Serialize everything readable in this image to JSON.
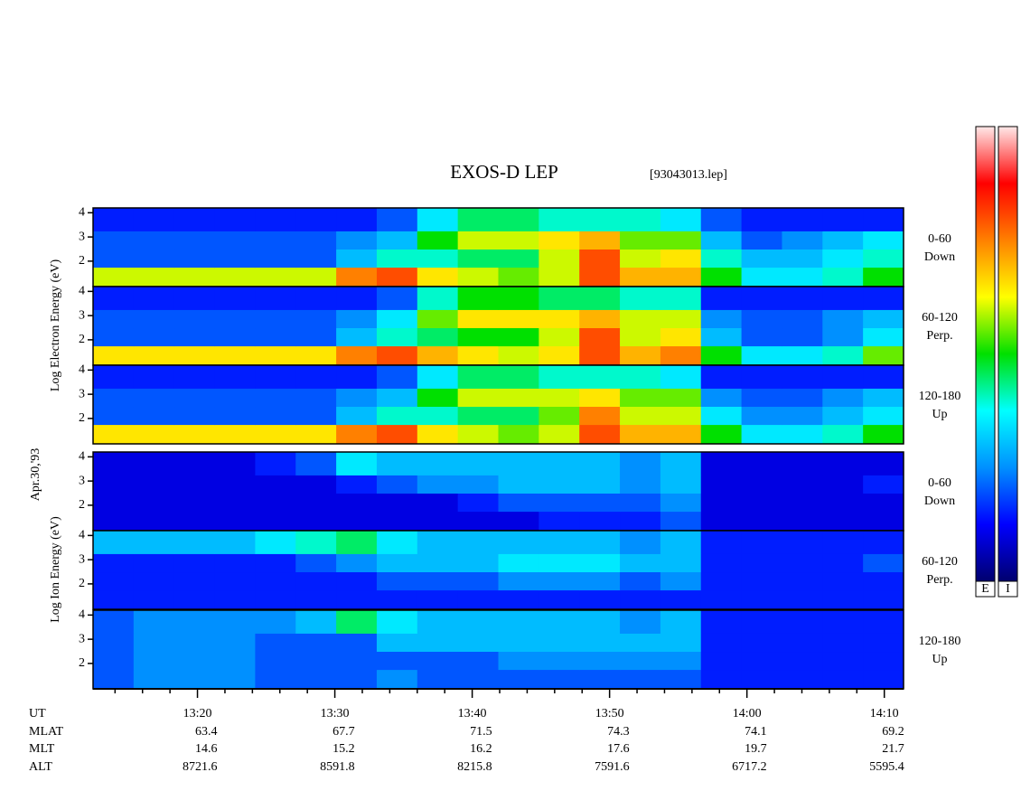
{
  "title": "EXOS-D LEP",
  "file": "[93043013.lep]",
  "date": "Apr.30,'93",
  "electron_label": "Log Electron Energy (eV)",
  "ion_label": "Log Ion Energy (eV)",
  "colorbar_labels": [
    "E",
    "I"
  ],
  "colormap": [
    "#00006e",
    "#0000ff",
    "#0090ff",
    "#00ffff",
    "#00e000",
    "#ffff00",
    "#ff8000",
    "#ff0000",
    "#ffe8e8"
  ],
  "zlim": [
    0,
    10
  ],
  "x_axis": {
    "xlim": [
      792.4,
      851.4
    ],
    "xbins": [
      792.4,
      795.35,
      798.3,
      801.25,
      804.2,
      807.15,
      810.1,
      813.05,
      816,
      818.95,
      821.9,
      824.85,
      827.8,
      830.75,
      833.7,
      836.65,
      839.6,
      842.55,
      845.5,
      848.45,
      851.4
    ],
    "xticks": [
      {
        "value": 800,
        "label": "13:20"
      },
      {
        "value": 810,
        "label": "13:30"
      },
      {
        "value": 820,
        "label": "13:40"
      },
      {
        "value": 830,
        "label": "13:50"
      },
      {
        "value": 840,
        "label": "14:00"
      },
      {
        "value": 850,
        "label": "14:10"
      }
    ],
    "xminorticks": [
      794,
      796,
      798,
      802,
      804,
      806,
      808,
      812,
      814,
      816,
      818,
      822,
      824,
      826,
      828,
      832,
      834,
      836,
      838,
      842,
      844,
      846,
      848
    ]
  },
  "orbit": {
    "labels": [
      "UT",
      "MLAT",
      "MLT",
      "ALT"
    ],
    "rows": [
      [
        63.4,
        67.7,
        71.5,
        74.3,
        74.1,
        69.2
      ],
      [
        14.6,
        15.2,
        16.2,
        17.6,
        19.7,
        21.7
      ],
      [
        8721.6,
        8591.8,
        8215.8,
        7591.6,
        6717.2,
        5595.4
      ]
    ]
  },
  "chart_data": [
    {
      "type": "heatmap",
      "angle": "0-60",
      "direction": "Down",
      "ylim": [
        0.95,
        4.2
      ],
      "yticks": [
        2,
        3,
        4
      ],
      "ybins": [
        0.95,
        1.75,
        2.5,
        3.25,
        4.2
      ],
      "values": [
        [
          6,
          6,
          6,
          6,
          6,
          6,
          7.5,
          8,
          6.5,
          6,
          5.5,
          6,
          8,
          7,
          7,
          5,
          3.5,
          3.5,
          4,
          5
        ],
        [
          2,
          2,
          2,
          2,
          2,
          2,
          3,
          4,
          4,
          4.5,
          4.5,
          6,
          8,
          6,
          6.5,
          4,
          3,
          3,
          3.5,
          4
        ],
        [
          2,
          2,
          2,
          2,
          2,
          2,
          2.5,
          3,
          5,
          6,
          6,
          6.5,
          7,
          5.5,
          5.5,
          3,
          2,
          2.5,
          3,
          3.5
        ],
        [
          1.5,
          1.5,
          1.5,
          1.5,
          1.5,
          1.5,
          1.5,
          2,
          3.5,
          4.5,
          4.5,
          4,
          4,
          4,
          3.5,
          2,
          1.5,
          1.5,
          1.5,
          1.5
        ]
      ]
    },
    {
      "type": "heatmap",
      "angle": "60-120",
      "direction": "Perp.",
      "ylim": [
        0.95,
        4.2
      ],
      "yticks": [
        2,
        3,
        4
      ],
      "ybins": [
        0.95,
        1.75,
        2.5,
        3.25,
        4.2
      ],
      "values": [
        [
          6.5,
          6.5,
          6.5,
          6.5,
          6.5,
          6.5,
          7.5,
          8,
          7,
          6.5,
          6,
          6.5,
          8,
          7,
          7.5,
          5,
          3.5,
          3.5,
          4,
          5.5
        ],
        [
          2,
          2,
          2,
          2,
          2,
          2,
          3,
          4,
          4.5,
          5,
          5,
          6,
          8,
          6,
          6.5,
          3,
          2,
          2,
          2.5,
          3.5
        ],
        [
          2,
          2,
          2,
          2,
          2,
          2,
          2.5,
          3.5,
          5.5,
          6.5,
          6.5,
          6.5,
          7,
          6,
          6,
          2.5,
          2,
          2,
          2.5,
          3
        ],
        [
          1.5,
          1.5,
          1.5,
          1.5,
          1.5,
          1.5,
          1.5,
          2,
          4,
          5,
          5,
          4.5,
          4.5,
          4,
          4,
          1.5,
          1.5,
          1.5,
          1.5,
          1.5
        ]
      ]
    },
    {
      "type": "heatmap",
      "angle": "120-180",
      "direction": "Up",
      "ylim": [
        0.95,
        4.2
      ],
      "yticks": [
        2,
        3,
        4
      ],
      "ybins": [
        0.95,
        1.75,
        2.5,
        3.25,
        4.2
      ],
      "values": [
        [
          6.5,
          6.5,
          6.5,
          6.5,
          6.5,
          6.5,
          7.5,
          8,
          6.5,
          6,
          5.5,
          6,
          8,
          7,
          7,
          5,
          3.5,
          3.5,
          4,
          5
        ],
        [
          2,
          2,
          2,
          2,
          2,
          2,
          3,
          4,
          4,
          4.5,
          4.5,
          5.5,
          7.5,
          6,
          6,
          3.5,
          2.5,
          2.5,
          3,
          3.5
        ],
        [
          2,
          2,
          2,
          2,
          2,
          2,
          2.5,
          3,
          5,
          6,
          6,
          6,
          6.5,
          5.5,
          5.5,
          2.5,
          2,
          2,
          2.5,
          3
        ],
        [
          1.5,
          1.5,
          1.5,
          1.5,
          1.5,
          1.5,
          1.5,
          2,
          3.5,
          4.5,
          4.5,
          4,
          4,
          4,
          3.5,
          1.5,
          1.5,
          1.5,
          1.5,
          1.5
        ]
      ]
    },
    {
      "type": "heatmap",
      "angle": "0-60",
      "direction": "Down",
      "ylim": [
        0.95,
        4.2
      ],
      "yticks": [
        2,
        3,
        4
      ],
      "ybins": [
        0.95,
        1.75,
        2.5,
        3.25,
        4.2
      ],
      "values": [
        [
          1,
          1,
          1,
          1,
          1,
          1,
          1,
          1,
          1,
          1,
          1,
          1.5,
          1.5,
          1.5,
          2,
          1,
          1,
          1,
          1,
          1
        ],
        [
          1,
          1,
          1,
          1,
          1,
          1,
          1,
          1,
          1,
          1.5,
          2,
          2,
          2,
          2,
          2.5,
          1,
          1,
          1,
          1,
          1
        ],
        [
          1,
          1,
          1,
          1,
          1,
          1,
          1.5,
          2,
          2.5,
          2.5,
          3,
          3,
          3,
          2.5,
          3,
          1,
          1,
          1,
          1,
          1.5
        ],
        [
          1,
          1,
          1,
          1,
          1.5,
          2,
          3.5,
          3,
          3,
          3,
          3,
          3,
          3,
          2.5,
          3,
          1,
          1,
          1,
          1,
          1
        ]
      ]
    },
    {
      "type": "heatmap",
      "angle": "60-120",
      "direction": "Perp.",
      "ylim": [
        0.95,
        4.2
      ],
      "yticks": [
        2,
        3,
        4
      ],
      "ybins": [
        0.95,
        1.75,
        2.5,
        3.25,
        4.2
      ],
      "values": [
        [
          1.5,
          1.5,
          1.5,
          1.5,
          1.5,
          1.5,
          1.5,
          1.5,
          1.5,
          1.5,
          1.5,
          1.5,
          1.5,
          1.5,
          1.5,
          1.5,
          1.5,
          1.5,
          1.5,
          1.5
        ],
        [
          1.5,
          1.5,
          1.5,
          1.5,
          1.5,
          1.5,
          1.5,
          2,
          2,
          2,
          2.5,
          2.5,
          2.5,
          2,
          2.5,
          1.5,
          1.5,
          1.5,
          1.5,
          1.5
        ],
        [
          1.5,
          1.5,
          1.5,
          1.5,
          1.5,
          2,
          2.5,
          3,
          3,
          3,
          3.5,
          3.5,
          3.5,
          3,
          3,
          1.5,
          1.5,
          1.5,
          1.5,
          2
        ],
        [
          3,
          3,
          3,
          3,
          3.5,
          4,
          4.5,
          3.5,
          3,
          3,
          3,
          3,
          3,
          2.5,
          3,
          1.5,
          1.5,
          1.5,
          1.5,
          1.5
        ]
      ]
    },
    {
      "type": "heatmap",
      "angle": "120-180",
      "direction": "Up",
      "ylim": [
        0.95,
        4.2
      ],
      "yticks": [
        2,
        3,
        4
      ],
      "ybins": [
        0.95,
        1.75,
        2.5,
        3.25,
        4.2
      ],
      "values": [
        [
          2,
          2.5,
          2.5,
          2.5,
          2,
          2,
          2,
          2.5,
          2,
          2,
          2,
          2,
          2,
          2,
          2,
          1.5,
          1.5,
          1.5,
          1.5,
          1.5
        ],
        [
          2,
          2.5,
          2.5,
          2.5,
          2,
          2,
          2,
          2,
          2,
          2,
          2.5,
          2.5,
          2.5,
          2.5,
          2.5,
          1.5,
          1.5,
          1.5,
          1.5,
          1.5
        ],
        [
          2,
          2.5,
          2.5,
          2.5,
          2,
          2,
          2,
          3,
          3,
          3,
          3,
          3,
          3,
          3,
          3,
          1.5,
          1.5,
          1.5,
          1.5,
          1.5
        ],
        [
          2,
          2.5,
          2.5,
          2.5,
          2.5,
          3,
          4.5,
          3.5,
          3,
          3,
          3,
          3,
          3,
          2.5,
          3,
          1.5,
          1.5,
          1.5,
          1.5,
          1.5
        ]
      ]
    }
  ]
}
